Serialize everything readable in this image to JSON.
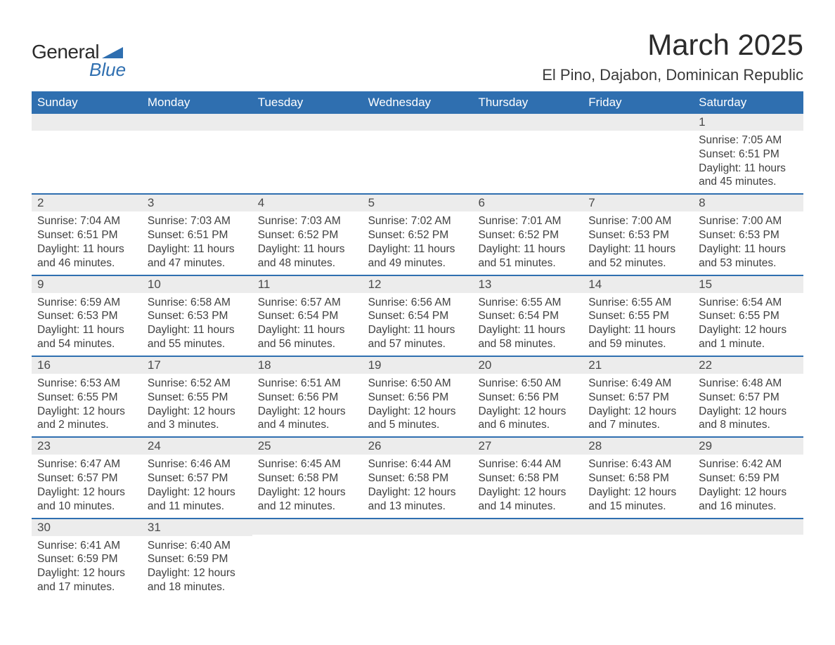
{
  "brand": {
    "general": "General",
    "blue": "Blue"
  },
  "header": {
    "month_title": "March 2025",
    "location": "El Pino, Dajabon, Dominican Republic"
  },
  "colors": {
    "header_bg": "#2f6fb0",
    "header_text": "#ffffff",
    "daynum_bg": "#ececec",
    "border": "#2f6fb0",
    "text": "#3a3a3a"
  },
  "weekdays": [
    "Sunday",
    "Monday",
    "Tuesday",
    "Wednesday",
    "Thursday",
    "Friday",
    "Saturday"
  ],
  "weeks": [
    [
      {
        "n": "",
        "sunrise": "",
        "sunset": "",
        "daylight": ""
      },
      {
        "n": "",
        "sunrise": "",
        "sunset": "",
        "daylight": ""
      },
      {
        "n": "",
        "sunrise": "",
        "sunset": "",
        "daylight": ""
      },
      {
        "n": "",
        "sunrise": "",
        "sunset": "",
        "daylight": ""
      },
      {
        "n": "",
        "sunrise": "",
        "sunset": "",
        "daylight": ""
      },
      {
        "n": "",
        "sunrise": "",
        "sunset": "",
        "daylight": ""
      },
      {
        "n": "1",
        "sunrise": "Sunrise: 7:05 AM",
        "sunset": "Sunset: 6:51 PM",
        "daylight": "Daylight: 11 hours and 45 minutes."
      }
    ],
    [
      {
        "n": "2",
        "sunrise": "Sunrise: 7:04 AM",
        "sunset": "Sunset: 6:51 PM",
        "daylight": "Daylight: 11 hours and 46 minutes."
      },
      {
        "n": "3",
        "sunrise": "Sunrise: 7:03 AM",
        "sunset": "Sunset: 6:51 PM",
        "daylight": "Daylight: 11 hours and 47 minutes."
      },
      {
        "n": "4",
        "sunrise": "Sunrise: 7:03 AM",
        "sunset": "Sunset: 6:52 PM",
        "daylight": "Daylight: 11 hours and 48 minutes."
      },
      {
        "n": "5",
        "sunrise": "Sunrise: 7:02 AM",
        "sunset": "Sunset: 6:52 PM",
        "daylight": "Daylight: 11 hours and 49 minutes."
      },
      {
        "n": "6",
        "sunrise": "Sunrise: 7:01 AM",
        "sunset": "Sunset: 6:52 PM",
        "daylight": "Daylight: 11 hours and 51 minutes."
      },
      {
        "n": "7",
        "sunrise": "Sunrise: 7:00 AM",
        "sunset": "Sunset: 6:53 PM",
        "daylight": "Daylight: 11 hours and 52 minutes."
      },
      {
        "n": "8",
        "sunrise": "Sunrise: 7:00 AM",
        "sunset": "Sunset: 6:53 PM",
        "daylight": "Daylight: 11 hours and 53 minutes."
      }
    ],
    [
      {
        "n": "9",
        "sunrise": "Sunrise: 6:59 AM",
        "sunset": "Sunset: 6:53 PM",
        "daylight": "Daylight: 11 hours and 54 minutes."
      },
      {
        "n": "10",
        "sunrise": "Sunrise: 6:58 AM",
        "sunset": "Sunset: 6:53 PM",
        "daylight": "Daylight: 11 hours and 55 minutes."
      },
      {
        "n": "11",
        "sunrise": "Sunrise: 6:57 AM",
        "sunset": "Sunset: 6:54 PM",
        "daylight": "Daylight: 11 hours and 56 minutes."
      },
      {
        "n": "12",
        "sunrise": "Sunrise: 6:56 AM",
        "sunset": "Sunset: 6:54 PM",
        "daylight": "Daylight: 11 hours and 57 minutes."
      },
      {
        "n": "13",
        "sunrise": "Sunrise: 6:55 AM",
        "sunset": "Sunset: 6:54 PM",
        "daylight": "Daylight: 11 hours and 58 minutes."
      },
      {
        "n": "14",
        "sunrise": "Sunrise: 6:55 AM",
        "sunset": "Sunset: 6:55 PM",
        "daylight": "Daylight: 11 hours and 59 minutes."
      },
      {
        "n": "15",
        "sunrise": "Sunrise: 6:54 AM",
        "sunset": "Sunset: 6:55 PM",
        "daylight": "Daylight: 12 hours and 1 minute."
      }
    ],
    [
      {
        "n": "16",
        "sunrise": "Sunrise: 6:53 AM",
        "sunset": "Sunset: 6:55 PM",
        "daylight": "Daylight: 12 hours and 2 minutes."
      },
      {
        "n": "17",
        "sunrise": "Sunrise: 6:52 AM",
        "sunset": "Sunset: 6:55 PM",
        "daylight": "Daylight: 12 hours and 3 minutes."
      },
      {
        "n": "18",
        "sunrise": "Sunrise: 6:51 AM",
        "sunset": "Sunset: 6:56 PM",
        "daylight": "Daylight: 12 hours and 4 minutes."
      },
      {
        "n": "19",
        "sunrise": "Sunrise: 6:50 AM",
        "sunset": "Sunset: 6:56 PM",
        "daylight": "Daylight: 12 hours and 5 minutes."
      },
      {
        "n": "20",
        "sunrise": "Sunrise: 6:50 AM",
        "sunset": "Sunset: 6:56 PM",
        "daylight": "Daylight: 12 hours and 6 minutes."
      },
      {
        "n": "21",
        "sunrise": "Sunrise: 6:49 AM",
        "sunset": "Sunset: 6:57 PM",
        "daylight": "Daylight: 12 hours and 7 minutes."
      },
      {
        "n": "22",
        "sunrise": "Sunrise: 6:48 AM",
        "sunset": "Sunset: 6:57 PM",
        "daylight": "Daylight: 12 hours and 8 minutes."
      }
    ],
    [
      {
        "n": "23",
        "sunrise": "Sunrise: 6:47 AM",
        "sunset": "Sunset: 6:57 PM",
        "daylight": "Daylight: 12 hours and 10 minutes."
      },
      {
        "n": "24",
        "sunrise": "Sunrise: 6:46 AM",
        "sunset": "Sunset: 6:57 PM",
        "daylight": "Daylight: 12 hours and 11 minutes."
      },
      {
        "n": "25",
        "sunrise": "Sunrise: 6:45 AM",
        "sunset": "Sunset: 6:58 PM",
        "daylight": "Daylight: 12 hours and 12 minutes."
      },
      {
        "n": "26",
        "sunrise": "Sunrise: 6:44 AM",
        "sunset": "Sunset: 6:58 PM",
        "daylight": "Daylight: 12 hours and 13 minutes."
      },
      {
        "n": "27",
        "sunrise": "Sunrise: 6:44 AM",
        "sunset": "Sunset: 6:58 PM",
        "daylight": "Daylight: 12 hours and 14 minutes."
      },
      {
        "n": "28",
        "sunrise": "Sunrise: 6:43 AM",
        "sunset": "Sunset: 6:58 PM",
        "daylight": "Daylight: 12 hours and 15 minutes."
      },
      {
        "n": "29",
        "sunrise": "Sunrise: 6:42 AM",
        "sunset": "Sunset: 6:59 PM",
        "daylight": "Daylight: 12 hours and 16 minutes."
      }
    ],
    [
      {
        "n": "30",
        "sunrise": "Sunrise: 6:41 AM",
        "sunset": "Sunset: 6:59 PM",
        "daylight": "Daylight: 12 hours and 17 minutes."
      },
      {
        "n": "31",
        "sunrise": "Sunrise: 6:40 AM",
        "sunset": "Sunset: 6:59 PM",
        "daylight": "Daylight: 12 hours and 18 minutes."
      },
      {
        "n": "",
        "sunrise": "",
        "sunset": "",
        "daylight": ""
      },
      {
        "n": "",
        "sunrise": "",
        "sunset": "",
        "daylight": ""
      },
      {
        "n": "",
        "sunrise": "",
        "sunset": "",
        "daylight": ""
      },
      {
        "n": "",
        "sunrise": "",
        "sunset": "",
        "daylight": ""
      },
      {
        "n": "",
        "sunrise": "",
        "sunset": "",
        "daylight": ""
      }
    ]
  ]
}
